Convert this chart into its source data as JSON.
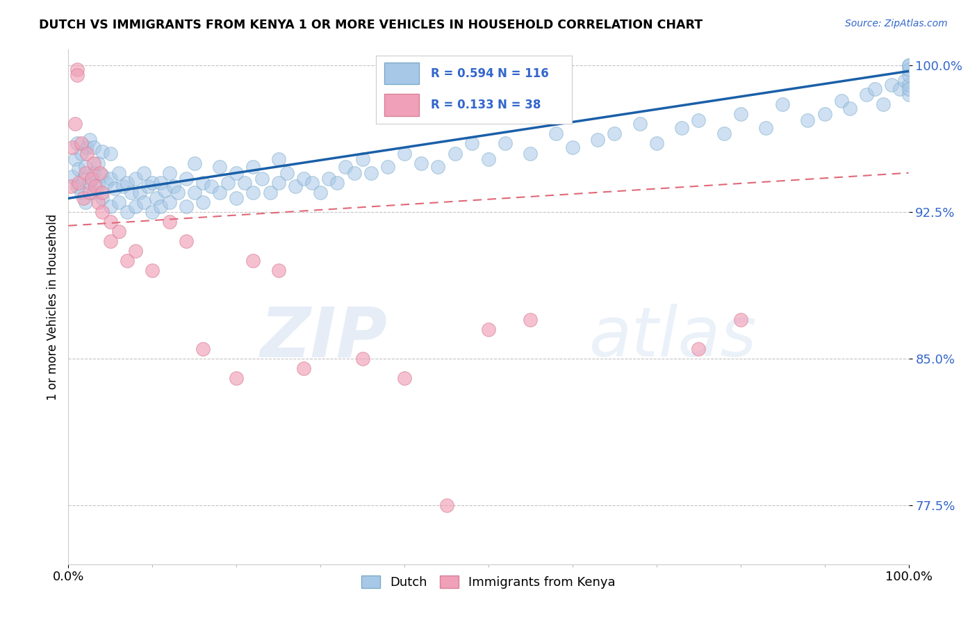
{
  "title": "DUTCH VS IMMIGRANTS FROM KENYA 1 OR MORE VEHICLES IN HOUSEHOLD CORRELATION CHART",
  "source": "Source: ZipAtlas.com",
  "ylabel": "1 or more Vehicles in Household",
  "x_min": 0.0,
  "x_max": 1.0,
  "y_min": 0.745,
  "y_max": 1.008,
  "y_ticks": [
    0.775,
    0.85,
    0.925,
    1.0
  ],
  "y_tick_labels": [
    "77.5%",
    "85.0%",
    "92.5%",
    "100.0%"
  ],
  "x_ticks": [
    0.0,
    1.0
  ],
  "x_tick_labels": [
    "0.0%",
    "100.0%"
  ],
  "dutch_color": "#a8c8e8",
  "dutch_edge_color": "#7aaac8",
  "kenya_color": "#f0a0b8",
  "kenya_edge_color": "#d88098",
  "dutch_line_color": "#1a5fa8",
  "kenya_line_color": "#e06878",
  "R_dutch": 0.594,
  "N_dutch": 116,
  "R_kenya": 0.133,
  "N_kenya": 38,
  "watermark_zip": "ZIP",
  "watermark_atlas": "atlas",
  "legend_dutch": "Dutch",
  "legend_kenya": "Immigrants from Kenya",
  "dutch_trend_x0": 0.0,
  "dutch_trend_y0": 0.932,
  "dutch_trend_x1": 1.0,
  "dutch_trend_y1": 0.997,
  "kenya_trend_x0": 0.0,
  "kenya_trend_y0": 0.918,
  "kenya_trend_x1": 1.0,
  "kenya_trend_y1": 0.945
}
